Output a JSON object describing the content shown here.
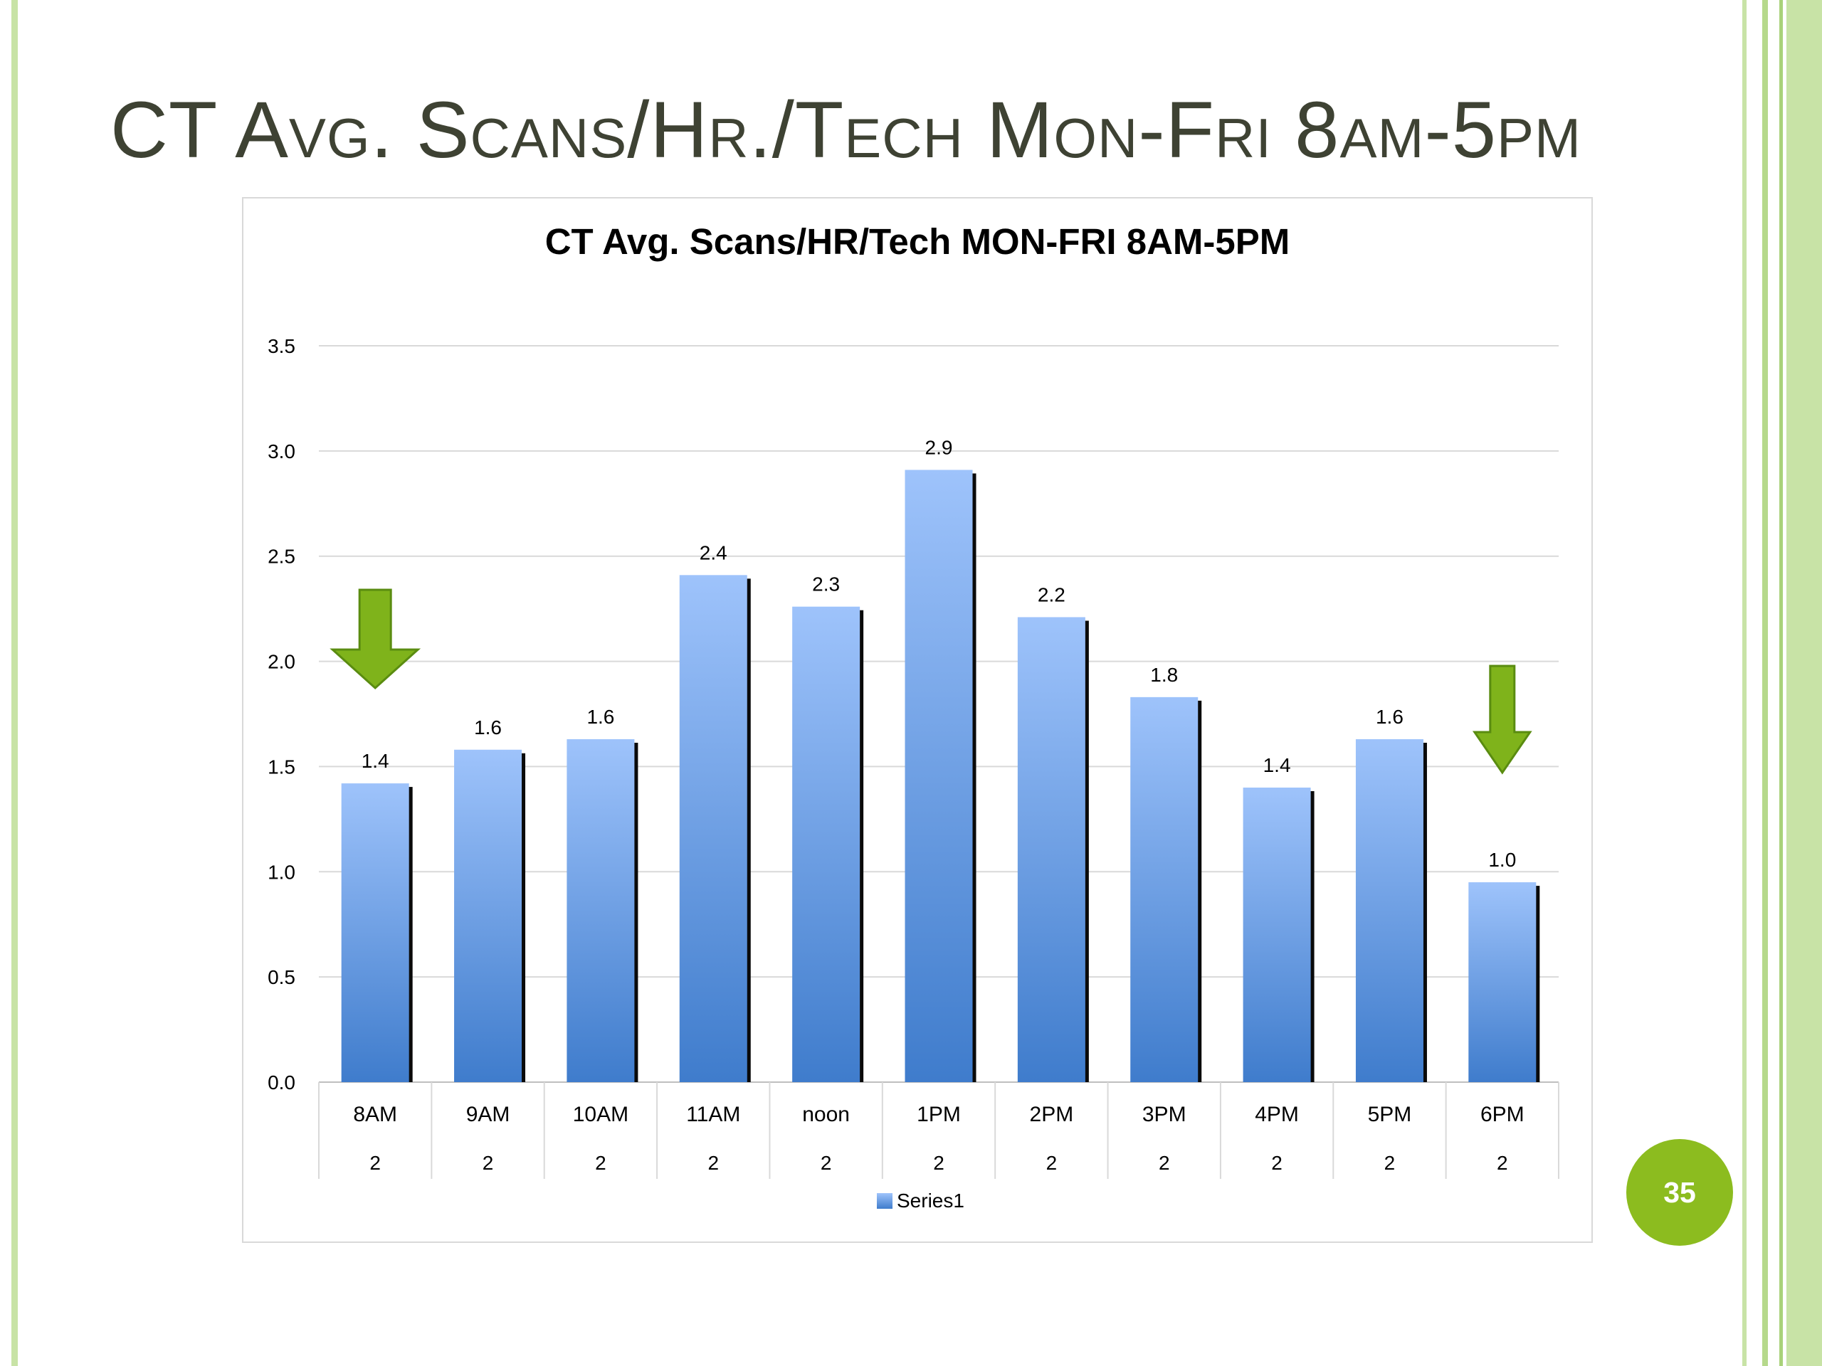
{
  "slide": {
    "title": "CT Avg. Scans/Hr./Tech Mon-Fri 8am-5pm",
    "page_number": "35"
  },
  "chart_data": {
    "type": "bar",
    "title": "CT Avg. Scans/HR/Tech MON-FRI 8AM-5PM",
    "categories": [
      "8AM",
      "9AM",
      "10AM",
      "11AM",
      "noon",
      "1PM",
      "2PM",
      "3PM",
      "4PM",
      "5PM",
      "6PM"
    ],
    "category_sublabels": [
      "2",
      "2",
      "2",
      "2",
      "2",
      "2",
      "2",
      "2",
      "2",
      "2",
      "2"
    ],
    "series": [
      {
        "name": "Series1",
        "values": [
          1.42,
          1.58,
          1.63,
          2.41,
          2.26,
          2.91,
          2.21,
          1.83,
          1.4,
          1.63,
          0.95
        ],
        "value_labels": [
          "1.4",
          "1.6",
          "1.6",
          "2.4",
          "2.3",
          "2.9",
          "2.2",
          "1.8",
          "1.4",
          "1.6",
          "1.0"
        ],
        "color": "#5b8fdb"
      }
    ],
    "ylim": [
      0,
      3.5
    ],
    "yticks": [
      "0.0",
      "0.5",
      "1.0",
      "1.5",
      "2.0",
      "2.5",
      "3.0",
      "3.5"
    ],
    "grid": true,
    "legend": "bottom-center",
    "annotations": [
      {
        "type": "down-arrow",
        "category": "8AM",
        "color": "#7fb31b"
      },
      {
        "type": "down-arrow",
        "category": "6PM",
        "color": "#7fb31b"
      }
    ]
  }
}
